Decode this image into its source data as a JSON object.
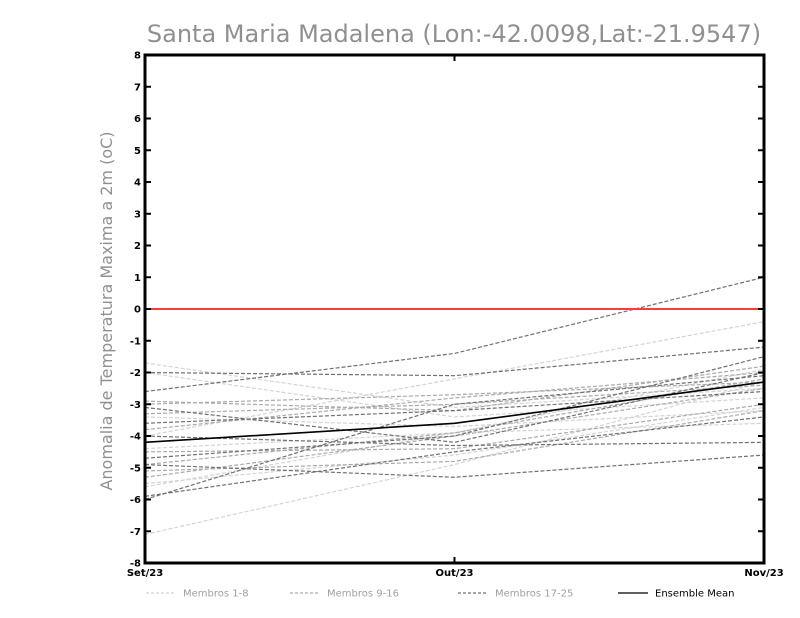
{
  "chart_data": {
    "type": "line",
    "title": "Santa Maria Madalena (Lon:-42.0098,Lat:-21.9547)",
    "ylabel": "Anomalia de Temperatura Maxima a 2m (oC)",
    "xlabel": "",
    "categories": [
      "Set/23",
      "Out/23",
      "Nov/23"
    ],
    "ylim": [
      -8,
      8
    ],
    "yticks": [
      -8,
      -7,
      -6,
      -5,
      -4,
      -3,
      -2,
      -1,
      0,
      1,
      2,
      3,
      4,
      5,
      6,
      7,
      8
    ],
    "reference_line": {
      "y": 0,
      "color": "#ff3a3a"
    },
    "grid": false,
    "legend_position": "bottom",
    "legend": [
      {
        "label": "Membros 1-8",
        "color": "#d4d4d4",
        "dash": "dashed"
      },
      {
        "label": "Membros 9-16",
        "color": "#aaaaaa",
        "dash": "dashed"
      },
      {
        "label": "Membros 17-25",
        "color": "#707070",
        "dash": "dashed"
      },
      {
        "label": "Ensemble Mean",
        "color": "#000000",
        "dash": "solid"
      }
    ],
    "groups": [
      {
        "name": "Membros 1-8",
        "color": "#d4d4d4",
        "members": [
          [
            -7.1,
            -4.9,
            -2.3
          ],
          [
            -5.6,
            -3.9,
            -1.9
          ],
          [
            -1.7,
            -3.1,
            -2.5
          ],
          [
            -5.5,
            -4.6,
            -3.1
          ],
          [
            -4.0,
            -2.2,
            -0.4
          ],
          [
            -3.4,
            -3.7,
            -3.2
          ],
          [
            -2.0,
            -3.4,
            -2.8
          ],
          [
            -4.4,
            -3.9,
            -3.6
          ]
        ]
      },
      {
        "name": "Membros 9-16",
        "color": "#aaaaaa",
        "members": [
          [
            -5.3,
            -4.0,
            -2.5
          ],
          [
            -3.8,
            -2.8,
            -2.0
          ],
          [
            -2.9,
            -3.2,
            -1.8
          ],
          [
            -4.5,
            -4.4,
            -3.0
          ],
          [
            -3.0,
            -2.7,
            -2.3
          ],
          [
            -4.9,
            -3.9,
            -2.2
          ],
          [
            -3.3,
            -3.0,
            -2.4
          ],
          [
            -5.1,
            -4.8,
            -3.2
          ]
        ]
      },
      {
        "name": "Membros 17-25",
        "color": "#707070",
        "members": [
          [
            -2.6,
            -1.4,
            1.0
          ],
          [
            -2.0,
            -2.1,
            -1.2
          ],
          [
            -6.0,
            -3.0,
            -2.1
          ],
          [
            -5.9,
            -4.5,
            -3.4
          ],
          [
            -4.0,
            -4.3,
            -4.2
          ],
          [
            -4.7,
            -4.0,
            -1.5
          ],
          [
            -3.1,
            -4.2,
            -2.0
          ],
          [
            -4.9,
            -5.3,
            -4.6
          ],
          [
            -3.6,
            -3.2,
            -2.6
          ]
        ]
      }
    ],
    "series": [
      {
        "name": "Ensemble Mean",
        "color": "#000000",
        "values": [
          -4.2,
          -3.6,
          -2.3
        ]
      }
    ]
  }
}
